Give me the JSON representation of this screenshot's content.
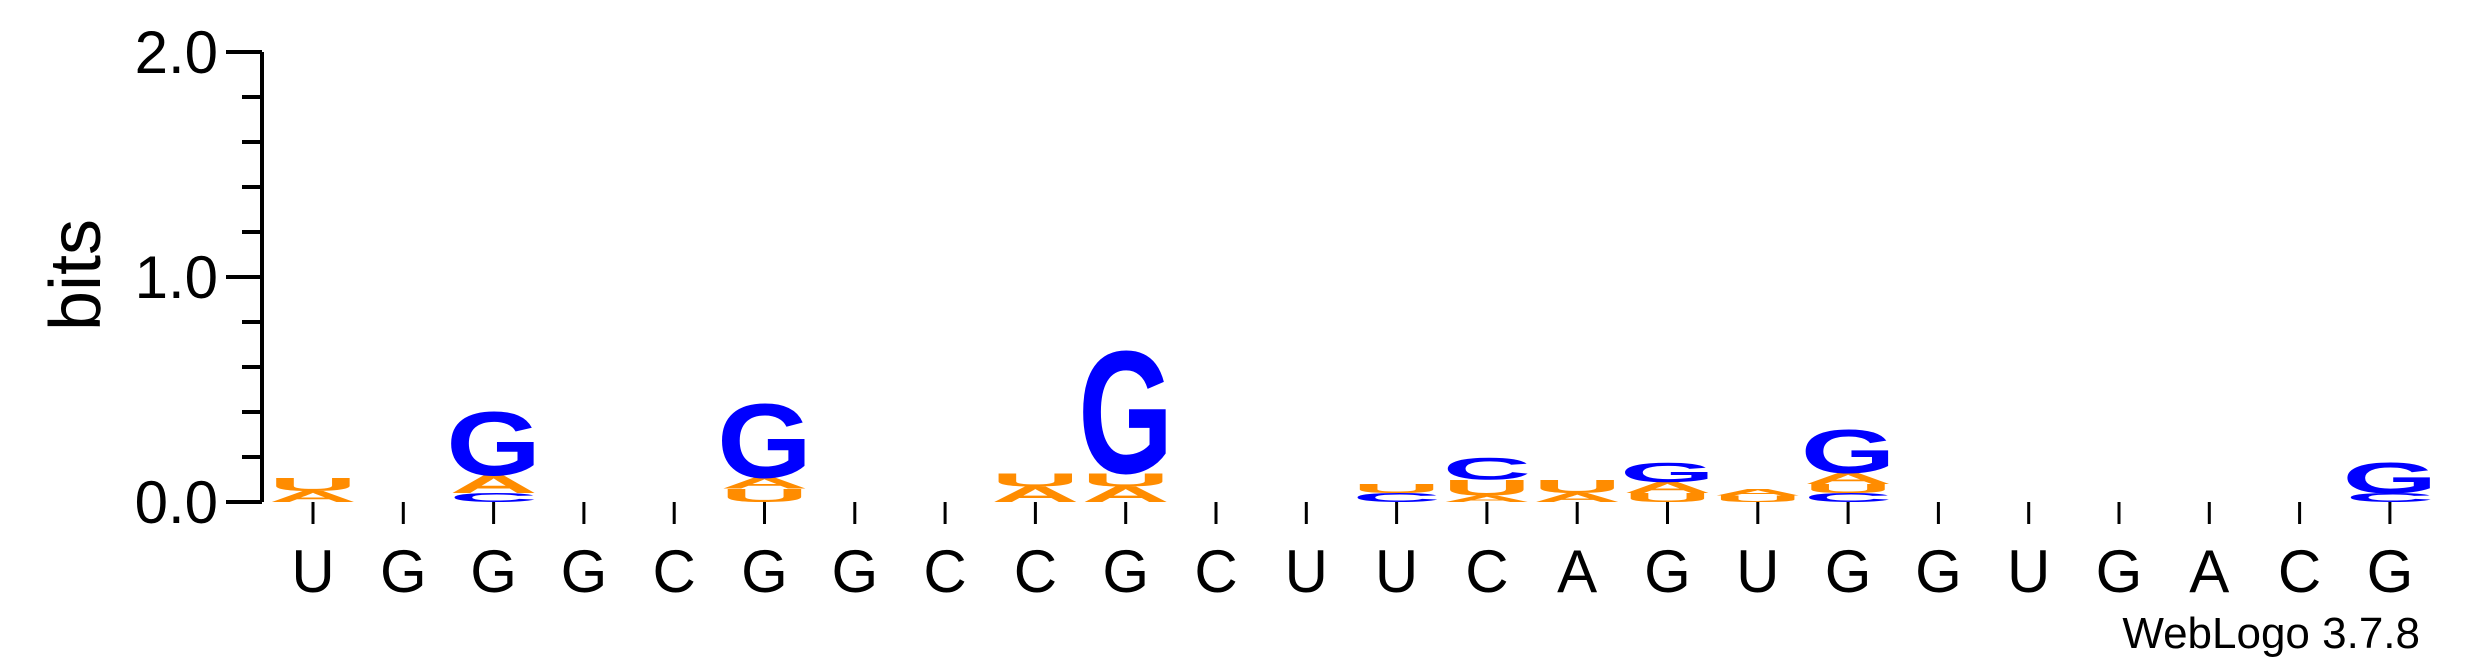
{
  "chart_data": {
    "type": "sequence-logo",
    "title": "",
    "ylabel": "bits",
    "ylim": [
      0,
      2.0
    ],
    "y_ticks": [
      "0.0",
      "1.0",
      "2.0"
    ],
    "x_labels": [
      "U",
      "G",
      "G",
      "G",
      "C",
      "G",
      "G",
      "C",
      "C",
      "G",
      "C",
      "U",
      "U",
      "C",
      "A",
      "G",
      "U",
      "G",
      "G",
      "U",
      "G",
      "A",
      "C",
      "G"
    ],
    "credit": "WebLogo 3.7.8",
    "colors": {
      "U": "#ff8c00",
      "A": "#ff8c00",
      "G": "#0000ff",
      "C": "#0000ff"
    },
    "stacks": [
      [
        {
          "letter": "A",
          "bits": 0.05
        },
        {
          "letter": "U",
          "bits": 0.06
        }
      ],
      [],
      [
        {
          "letter": "C",
          "bits": 0.04
        },
        {
          "letter": "A",
          "bits": 0.08
        },
        {
          "letter": "G",
          "bits": 0.29
        }
      ],
      [],
      [],
      [
        {
          "letter": "U",
          "bits": 0.06
        },
        {
          "letter": "A",
          "bits": 0.05
        },
        {
          "letter": "G",
          "bits": 0.34
        }
      ],
      [],
      [],
      [
        {
          "letter": "A",
          "bits": 0.07
        },
        {
          "letter": "U",
          "bits": 0.06
        }
      ],
      [
        {
          "letter": "A",
          "bits": 0.07
        },
        {
          "letter": "U",
          "bits": 0.06
        },
        {
          "letter": "G",
          "bits": 0.56
        }
      ],
      [],
      [],
      [
        {
          "letter": "C",
          "bits": 0.04
        },
        {
          "letter": "U",
          "bits": 0.04
        }
      ],
      [
        {
          "letter": "A",
          "bits": 0.03
        },
        {
          "letter": "U",
          "bits": 0.07
        },
        {
          "letter": "C",
          "bits": 0.1
        }
      ],
      [
        {
          "letter": "A",
          "bits": 0.04
        },
        {
          "letter": "U",
          "bits": 0.06
        }
      ],
      [
        {
          "letter": "U",
          "bits": 0.04
        },
        {
          "letter": "A",
          "bits": 0.05
        },
        {
          "letter": "G",
          "bits": 0.09
        }
      ],
      [
        {
          "letter": "U",
          "bits": 0.03
        },
        {
          "letter": "A",
          "bits": 0.03
        }
      ],
      [
        {
          "letter": "C",
          "bits": 0.04
        },
        {
          "letter": "U",
          "bits": 0.04
        },
        {
          "letter": "A",
          "bits": 0.05
        },
        {
          "letter": "G",
          "bits": 0.2
        }
      ],
      [],
      [],
      [],
      [],
      [],
      [
        {
          "letter": "C",
          "bits": 0.04
        },
        {
          "letter": "G",
          "bits": 0.14
        }
      ]
    ]
  }
}
